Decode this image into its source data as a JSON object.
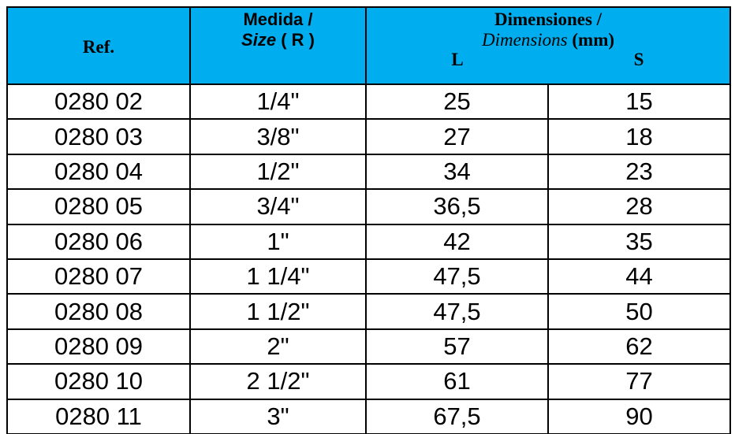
{
  "header": {
    "ref": "Ref.",
    "size": {
      "line1": "Medida /",
      "italic": "Size",
      "rest": "( R )"
    },
    "dimensions": {
      "line1": "Dimensiones /",
      "italic": "Dimensions",
      "rest": "(mm)",
      "l": "L",
      "s": "S"
    }
  },
  "table": {
    "rows": [
      [
        "0280 02",
        "1/4\"",
        "25",
        "15"
      ],
      [
        "0280 03",
        "3/8\"",
        "27",
        "18"
      ],
      [
        "0280 04",
        "1/2\"",
        "34",
        "23"
      ],
      [
        "0280 05",
        "3/4\"",
        "36,5",
        "28"
      ],
      [
        "0280 06",
        "1\"",
        "42",
        "35"
      ],
      [
        "0280 07",
        "1 1/4\"",
        "47,5",
        "44"
      ],
      [
        "0280 08",
        "1 1/2\"",
        "47,5",
        "50"
      ],
      [
        "0280 09",
        "2\"",
        "57",
        "62"
      ],
      [
        "0280 10",
        "2 1/2\"",
        "61",
        "77"
      ],
      [
        "0280 11",
        "3\"",
        "67,5",
        "90"
      ]
    ]
  }
}
